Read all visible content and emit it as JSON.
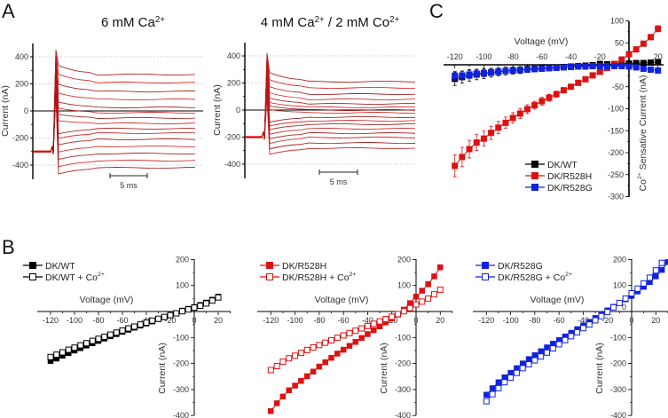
{
  "panels": {
    "A": "A",
    "B": "B",
    "C": "C"
  },
  "chart_data": [
    {
      "id": "A1",
      "type": "line",
      "title": "6 mM Ca",
      "title_sup": "2+",
      "ylabel": "Current  (nA)",
      "ylim": [
        -450,
        450
      ],
      "yticks": [
        400,
        200,
        0,
        -200,
        -400
      ],
      "ytick_labels": [
        "400",
        "200",
        "0",
        "-200",
        "-400"
      ],
      "grid": "dotted horizontal at ±400, ±200",
      "scale_bar": "5 ms",
      "holding_current": -300,
      "peak_current": 450,
      "series_color": "#cc0000",
      "steady_state_currents": [
        269,
        210,
        144,
        85,
        26,
        -13,
        -52,
        -92,
        -131,
        -164,
        -210,
        -262,
        -315,
        -367,
        -420
      ]
    },
    {
      "id": "A2",
      "type": "line",
      "title": "4 mM Ca",
      "title_sup": "2+",
      "title_mid": " / 2 mM Co",
      "title_sup2": "2+",
      "ylabel": "Current  (nA)",
      "ylim": [
        -450,
        450
      ],
      "yticks": [
        400,
        200,
        0,
        -200,
        -400
      ],
      "ytick_labels": [
        "400",
        "200",
        "0",
        "-200",
        "-400"
      ],
      "grid": "dotted horizontal at ±400, ±200",
      "scale_bar": "5 ms",
      "holding_current": -200,
      "peak_current": 420,
      "series_color": "#cc0000",
      "steady_state_currents": [
        210,
        164,
        118,
        79,
        46,
        20,
        0,
        -20,
        -52,
        -79,
        -105,
        -138,
        -171,
        -203,
        -243,
        -282
      ]
    },
    {
      "id": "C",
      "type": "line",
      "xlabel": "Voltage (mV)",
      "ylabel": "Co",
      "ylabel_sup": "2+",
      "ylabel_rest": " Sensative Current (nA)",
      "xlim": [
        -125,
        22
      ],
      "ylim": [
        -300,
        100
      ],
      "xticks": [
        -120,
        -100,
        -80,
        -60,
        -40,
        -20,
        20
      ],
      "xtick_labels": [
        "-120",
        "-100",
        "-80",
        "-60",
        "-40",
        "-20",
        "20"
      ],
      "yticks": [
        100,
        50,
        -50,
        -100,
        -150,
        -200,
        -250,
        -300
      ],
      "ytick_labels": [
        "100",
        "50",
        "-50",
        "-100",
        "-150",
        "-200",
        "-250",
        "-300"
      ],
      "legend_position": "bottom-center",
      "x": [
        -120,
        -115,
        -110,
        -105,
        -100,
        -95,
        -90,
        -85,
        -80,
        -75,
        -70,
        -65,
        -60,
        -55,
        -50,
        -45,
        -40,
        -35,
        -30,
        -25,
        -20,
        -15,
        -10,
        -5,
        0,
        5,
        10,
        15,
        20
      ],
      "series": [
        {
          "name": "DK/WT",
          "color": "#000000",
          "marker": "filled-square",
          "values": [
            -32,
            -28,
            -24,
            -22,
            -20,
            -18,
            -16,
            -14,
            -13,
            -12,
            -10,
            -9,
            -8,
            -7,
            -6,
            -5,
            -4,
            -3,
            -2,
            -1,
            2,
            1,
            2,
            3,
            3,
            4,
            4,
            5,
            6
          ],
          "errors": [
            15,
            14,
            13,
            12,
            11,
            10,
            9,
            9,
            8,
            8,
            7,
            6,
            6,
            5,
            5,
            4,
            4,
            3,
            3,
            3,
            2,
            2,
            2,
            2,
            2,
            2,
            2,
            2,
            2
          ]
        },
        {
          "name": "DK/R528H",
          "color": "#dd1111",
          "marker": "filled-square",
          "values": [
            -230,
            -210,
            -192,
            -177,
            -168,
            -155,
            -143,
            -132,
            -121,
            -111,
            -101,
            -92,
            -83,
            -75,
            -67,
            -58,
            -50,
            -41,
            -33,
            -24,
            -16,
            -7,
            2,
            12,
            24,
            35,
            48,
            63,
            82
          ],
          "errors": [
            25,
            22,
            20,
            18,
            17,
            15,
            14,
            13,
            12,
            11,
            10,
            9,
            9,
            8,
            7,
            6,
            5,
            4,
            4,
            3,
            3,
            3,
            3,
            3,
            4,
            4,
            5,
            6,
            7
          ]
        },
        {
          "name": "DK/R528G",
          "color": "#1122dd",
          "marker": "filled-square",
          "values": [
            -25,
            -24,
            -22,
            -20,
            -19,
            -17,
            -16,
            -14,
            -13,
            -12,
            -11,
            -10,
            -9,
            -8,
            -7,
            -6,
            -5,
            -4,
            -4,
            -3,
            -3,
            -3,
            -3,
            -3,
            -4,
            -6,
            -9,
            -11,
            -13
          ],
          "errors": [
            10,
            9,
            9,
            8,
            8,
            7,
            7,
            6,
            6,
            5,
            5,
            5,
            4,
            4,
            4,
            3,
            3,
            3,
            3,
            2,
            2,
            2,
            2,
            2,
            2,
            2,
            2,
            2,
            2
          ]
        }
      ]
    },
    {
      "id": "B1",
      "type": "line",
      "xlabel": "Voltage (mV)",
      "ylabel": "Current (nA)",
      "xlim": [
        -130,
        30
      ],
      "ylim": [
        -400,
        200
      ],
      "xticks": [
        -120,
        -100,
        -80,
        -60,
        -40,
        -20,
        0,
        20
      ],
      "xtick_labels": [
        "-120",
        "-100",
        "-80",
        "-60",
        "-40",
        "-20",
        "0",
        "20"
      ],
      "yticks": [
        200,
        100,
        -100,
        -200,
        -300,
        -400
      ],
      "ytick_labels": [
        "200",
        "100",
        "-100",
        "-200",
        "-300",
        "-400"
      ],
      "legend_position": "top-left",
      "series": [
        {
          "name": "DK/WT",
          "name_sup": "",
          "color": "#000000",
          "marker": "filled-square",
          "x": [
            -120,
            -115,
            -110,
            -105,
            -100,
            -95,
            -90,
            -85,
            -80,
            -75,
            -70,
            -65,
            -60,
            -55,
            -50,
            -45,
            -40,
            -35,
            -30,
            -25,
            -20,
            -15,
            -10,
            -5,
            0,
            5,
            10,
            15,
            20
          ],
          "values": [
            -190,
            -181,
            -170,
            -160,
            -150,
            -141,
            -131,
            -122,
            -113,
            -104,
            -95,
            -87,
            -78,
            -70,
            -62,
            -54,
            -46,
            -38,
            -29,
            -22,
            -14,
            -6,
            3,
            10,
            17,
            25,
            34,
            45,
            57
          ]
        },
        {
          "name": "DK/WT + Co",
          "name_sup": "2+",
          "color": "#000000",
          "marker": "open-square",
          "x": [
            -120,
            -115,
            -110,
            -105,
            -100,
            -95,
            -90,
            -85,
            -80,
            -75,
            -70,
            -65,
            -60,
            -55,
            -50,
            -45,
            -40,
            -35,
            -30,
            -25,
            -20,
            -15,
            -10,
            -5,
            0,
            5,
            10,
            15,
            20
          ],
          "values": [
            -175,
            -166,
            -157,
            -147,
            -139,
            -130,
            -122,
            -113,
            -105,
            -97,
            -89,
            -81,
            -73,
            -65,
            -58,
            -50,
            -43,
            -35,
            -28,
            -21,
            -14,
            -7,
            1,
            8,
            15,
            22,
            31,
            42,
            54
          ]
        }
      ]
    },
    {
      "id": "B2",
      "type": "line",
      "xlabel": "Voltage (mV)",
      "ylabel": "Current (nA)",
      "xlim": [
        -130,
        30
      ],
      "ylim": [
        -400,
        200
      ],
      "xticks": [
        -120,
        -100,
        -80,
        -60,
        -40,
        -20,
        0,
        20
      ],
      "xtick_labels": [
        "-120",
        "-100",
        "-80",
        "-60",
        "-40",
        "-20",
        "0",
        "20"
      ],
      "yticks": [
        200,
        100,
        -100,
        -200,
        -300,
        -400
      ],
      "ytick_labels": [
        "200",
        "100",
        "-100",
        "-200",
        "-300",
        "-400"
      ],
      "legend_position": "top-left",
      "series": [
        {
          "name": "DK/R528H",
          "name_sup": "",
          "color": "#dd1111",
          "marker": "filled-square",
          "x": [
            -120,
            -115,
            -110,
            -105,
            -100,
            -95,
            -90,
            -85,
            -80,
            -75,
            -70,
            -65,
            -60,
            -55,
            -50,
            -45,
            -40,
            -35,
            -30,
            -25,
            -20,
            -15,
            -10,
            -5,
            0,
            5,
            10,
            15,
            20
          ],
          "values": [
            -383,
            -353,
            -327,
            -303,
            -285,
            -267,
            -249,
            -231,
            -212,
            -195,
            -178,
            -162,
            -147,
            -132,
            -117,
            -102,
            -87,
            -72,
            -57,
            -42,
            -27,
            -12,
            7,
            32,
            57,
            80,
            105,
            135,
            170
          ]
        },
        {
          "name": "DK/R528H + Co",
          "name_sup": "2+",
          "color": "#dd1111",
          "marker": "open-square",
          "x": [
            -120,
            -115,
            -110,
            -105,
            -100,
            -95,
            -90,
            -85,
            -80,
            -75,
            -70,
            -65,
            -60,
            -55,
            -50,
            -45,
            -40,
            -35,
            -30,
            -25,
            -20,
            -15,
            -10,
            -5,
            0,
            5,
            10,
            15,
            20
          ],
          "values": [
            -225,
            -210,
            -193,
            -180,
            -170,
            -159,
            -148,
            -138,
            -129,
            -120,
            -111,
            -101,
            -92,
            -83,
            -74,
            -65,
            -56,
            -47,
            -38,
            -29,
            -20,
            -10,
            1,
            13,
            27,
            38,
            50,
            66,
            84
          ]
        }
      ]
    },
    {
      "id": "B3",
      "type": "line",
      "xlabel": "Voltage (mV)",
      "ylabel": "Current (nA)",
      "xlim": [
        -130,
        30
      ],
      "ylim": [
        -400,
        200
      ],
      "xticks": [
        -120,
        -100,
        -80,
        -60,
        -40,
        -20,
        0,
        20
      ],
      "xtick_labels": [
        "-120",
        "-100",
        "-80",
        "-60",
        "-40",
        "-20",
        "0",
        "20"
      ],
      "yticks": [
        200,
        100,
        -100,
        -200,
        -300,
        -400
      ],
      "ytick_labels": [
        "200",
        "100",
        "-100",
        "-200",
        "-300",
        "-400"
      ],
      "legend_position": "top-left",
      "series": [
        {
          "name": "DK/R528G",
          "name_sup": "",
          "color": "#1122dd",
          "marker": "filled-square",
          "x": [
            -120,
            -115,
            -110,
            -105,
            -100,
            -95,
            -90,
            -85,
            -80,
            -75,
            -70,
            -65,
            -60,
            -55,
            -50,
            -45,
            -40,
            -35,
            -30,
            -25,
            -20,
            -15,
            -10,
            -5,
            0,
            5,
            10,
            15,
            20,
            25,
            30
          ],
          "values": [
            -320,
            -295,
            -272,
            -253,
            -236,
            -218,
            -200,
            -183,
            -168,
            -153,
            -138,
            -124,
            -110,
            -96,
            -82,
            -68,
            -54,
            -40,
            -25,
            -10,
            4,
            18,
            33,
            47,
            60,
            77,
            95,
            113,
            135,
            160,
            190
          ]
        },
        {
          "name": "DK/R528G + Co",
          "name_sup": "2+",
          "color": "#1122dd",
          "marker": "open-square",
          "x": [
            -120,
            -115,
            -110,
            -105,
            -100,
            -95,
            -90,
            -85,
            -80,
            -75,
            -70,
            -65,
            -60,
            -55,
            -50,
            -45,
            -40,
            -35,
            -30,
            -25,
            -20,
            -15,
            -10,
            -5,
            0,
            5,
            10,
            15,
            20,
            25
          ],
          "values": [
            -345,
            -318,
            -295,
            -272,
            -254,
            -236,
            -218,
            -203,
            -188,
            -173,
            -158,
            -142,
            -126,
            -110,
            -95,
            -80,
            -64,
            -50,
            -34,
            -18,
            -2,
            16,
            33,
            50,
            70,
            88,
            108,
            130,
            158,
            187
          ]
        }
      ]
    }
  ]
}
